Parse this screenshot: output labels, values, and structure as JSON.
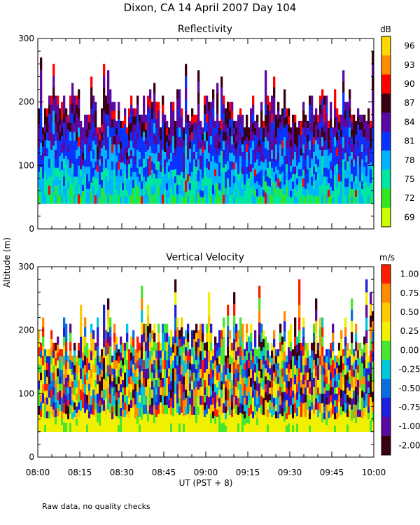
{
  "figure": {
    "title": "Dixon, CA 14 April 2007  Day 104",
    "ylabel": "Altitude (m)",
    "xlabel": "UT  (PST + 8)",
    "note": "Raw data, no quality checks",
    "xticks": [
      "08:00",
      "08:15",
      "08:30",
      "08:45",
      "09:00",
      "09:15",
      "09:30",
      "09:45",
      "10:00"
    ]
  },
  "chart_data": [
    {
      "type": "heatmap",
      "title": "Reflectivity",
      "xlabel": "UT  (PST + 8)",
      "ylabel": "Altitude (m)",
      "xlim": [
        "08:00",
        "10:00"
      ],
      "ylim": [
        0,
        300
      ],
      "yticks": [
        0,
        100,
        200,
        300
      ],
      "data_range_m": [
        40,
        280
      ],
      "colorbar": {
        "unit": "dB",
        "labels": [
          "96",
          "93",
          "90",
          "87",
          "84",
          "81",
          "78",
          "75",
          "72",
          "69"
        ],
        "colors": [
          "#ffd700",
          "#ff8c00",
          "#ff0000",
          "#3a0010",
          "#5a0aa0",
          "#0a32ff",
          "#00b4ff",
          "#00e6a0",
          "#32e61e",
          "#c8ff00"
        ]
      }
    },
    {
      "type": "heatmap",
      "title": "Vertical Velocity",
      "xlabel": "UT  (PST + 8)",
      "ylabel": "Altitude (m)",
      "xlim": [
        "08:00",
        "10:00"
      ],
      "ylim": [
        0,
        300
      ],
      "yticks": [
        0,
        100,
        200,
        300
      ],
      "data_range_m": [
        40,
        280
      ],
      "colorbar": {
        "unit": "m/s",
        "labels": [
          "1.00",
          "0.75",
          "0.50",
          "0.25",
          "0.00",
          "-0.25",
          "-0.50",
          "-0.75",
          "-1.00",
          "-2.00"
        ],
        "colors": [
          "#ff1e00",
          "#ff8c00",
          "#ffc800",
          "#f0f000",
          "#46e632",
          "#00c8dc",
          "#0a6edc",
          "#1e1edc",
          "#5a0aa0",
          "#3a0010"
        ]
      }
    }
  ]
}
